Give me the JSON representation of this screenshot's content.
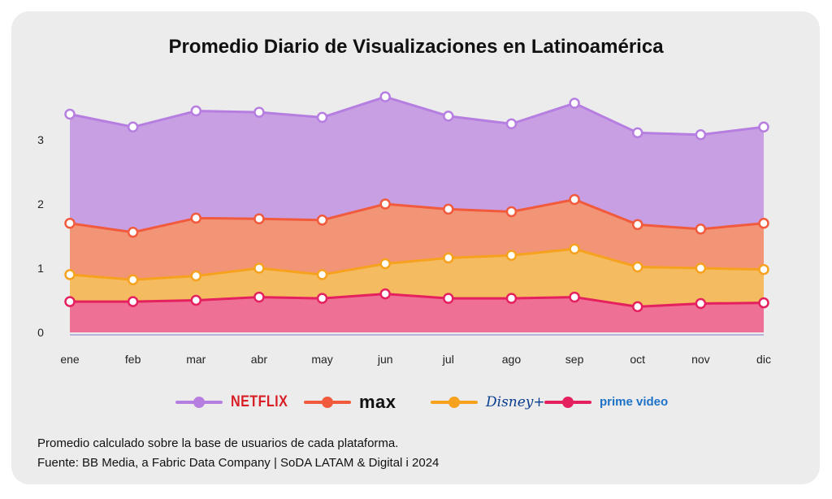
{
  "title": "Promedio Diario de Visualizaciones en Latinoamérica",
  "footnotes": {
    "note": "Promedio calculado sobre la base de usuarios de cada plataforma.",
    "source": "Fuente: BB Media, a Fabric Data Company | SoDA LATAM & Digital i 2024"
  },
  "legend": [
    {
      "label": "NETFLIX",
      "color": "#b57ee0",
      "style": "netflix"
    },
    {
      "label": "max",
      "color": "#f15a3c",
      "style": "max"
    },
    {
      "label": "Disney+",
      "color": "#f6a21e",
      "style": "disney"
    },
    {
      "label": "prime video",
      "color": "#e5205e",
      "style": "prime"
    }
  ],
  "chart_data": {
    "type": "area",
    "stacked": false,
    "title": "Promedio Diario de Visualizaciones en Latinoamérica",
    "xlabel": "",
    "ylabel": "",
    "categories": [
      "ene",
      "feb",
      "mar",
      "abr",
      "may",
      "jun",
      "jul",
      "ago",
      "sep",
      "oct",
      "nov",
      "dic"
    ],
    "yticks": [
      "0",
      "1",
      "2",
      "3"
    ],
    "ylim": [
      0,
      3.9
    ],
    "grid": false,
    "legend_position": "bottom",
    "series": [
      {
        "name": "NETFLIX",
        "color": "#b57ee0",
        "fill": "#c89fe2",
        "values": [
          3.4,
          3.2,
          3.45,
          3.43,
          3.35,
          3.67,
          3.37,
          3.25,
          3.57,
          3.11,
          3.08,
          3.2
        ]
      },
      {
        "name": "max",
        "color": "#f15a3c",
        "fill": "#f29476",
        "values": [
          1.7,
          1.56,
          1.78,
          1.77,
          1.75,
          2.0,
          1.92,
          1.88,
          2.07,
          1.68,
          1.61,
          1.7
        ]
      },
      {
        "name": "Disney+",
        "color": "#f6a21e",
        "fill": "#f4bb60",
        "values": [
          0.9,
          0.82,
          0.88,
          1.0,
          0.9,
          1.07,
          1.16,
          1.2,
          1.3,
          1.02,
          1.0,
          0.98
        ]
      },
      {
        "name": "prime video",
        "color": "#e5205e",
        "fill": "#ee7095",
        "values": [
          0.48,
          0.48,
          0.5,
          0.55,
          0.53,
          0.6,
          0.53,
          0.53,
          0.55,
          0.4,
          0.45,
          0.46
        ]
      }
    ]
  }
}
